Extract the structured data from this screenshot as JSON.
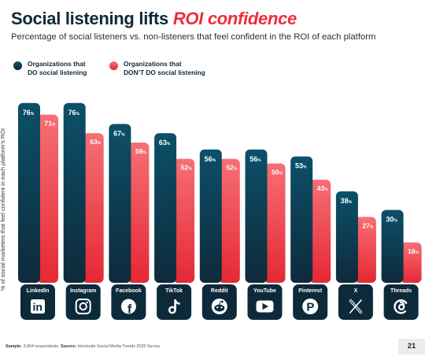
{
  "header": {
    "title_main": "Social listening lifts ",
    "title_accent": "ROI confidence",
    "subtitle": "Percentage of social listeners vs. non-listeners that feel confident in the ROI of each platform"
  },
  "legend": [
    {
      "label": "Organizations that\nDO social listening"
    },
    {
      "label": "Organizations that\nDON’T DO social listening"
    }
  ],
  "footer": {
    "sample_label": "Sample:",
    "sample_value": "3,864 respondents",
    "source_label": "Source:",
    "source_value": "Hootsuite Social Media Trends 2025 Survey",
    "page_number": "21"
  },
  "colors": {
    "do_top": "#0b5069",
    "do_bottom": "#0f2a3b",
    "dont_top": "#f66f75",
    "dont_bottom": "#e52834",
    "icon_box": "#0d2a3a"
  },
  "chart_data": {
    "type": "bar",
    "ylabel": "% of social marketers that feel confident in each platform's ROI",
    "ylim": [
      0,
      80
    ],
    "grid": false,
    "legend_position": "top-left",
    "categories": [
      "LinkedIn",
      "Instagram",
      "Facebook",
      "TikTok",
      "Reddit",
      "YouTube",
      "Pinterest",
      "X",
      "Threads"
    ],
    "icons": [
      "linkedin-icon",
      "instagram-icon",
      "facebook-icon",
      "tiktok-icon",
      "reddit-icon",
      "youtube-icon",
      "pinterest-icon",
      "x-icon",
      "threads-icon"
    ],
    "series": [
      {
        "name": "Organizations that DO social listening",
        "values": [
          76,
          76,
          67,
          63,
          56,
          56,
          53,
          38,
          30
        ]
      },
      {
        "name": "Organizations that DON’T DO social listening",
        "values": [
          71,
          63,
          59,
          52,
          52,
          50,
          43,
          27,
          16
        ]
      }
    ]
  }
}
